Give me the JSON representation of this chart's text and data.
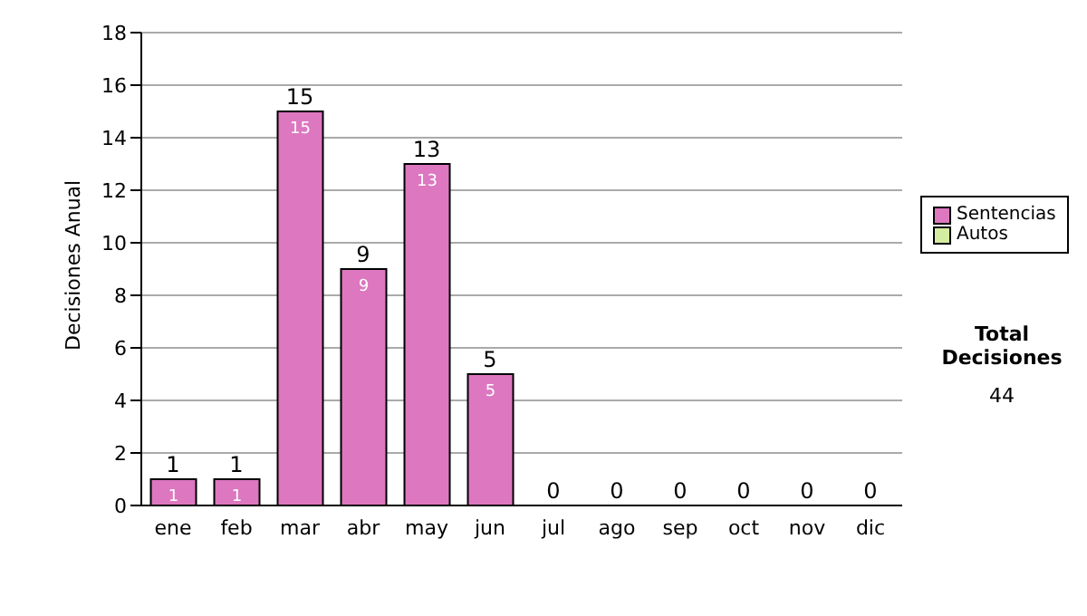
{
  "chart_data": {
    "type": "bar",
    "stacked": true,
    "ylabel": "Decisiones Anual",
    "categories": [
      "ene",
      "feb",
      "mar",
      "abr",
      "may",
      "jun",
      "jul",
      "ago",
      "sep",
      "oct",
      "nov",
      "dic"
    ],
    "series": [
      {
        "name": "Sentencias",
        "color": "#dd77c0",
        "values": [
          1,
          1,
          15,
          9,
          13,
          5,
          0,
          0,
          0,
          0,
          0,
          0
        ],
        "value_labels": [
          "1",
          "1",
          "15",
          "9",
          "13",
          "5",
          null,
          null,
          null,
          null,
          null,
          null
        ]
      },
      {
        "name": "Autos",
        "color": "#d4eca0",
        "values": [
          0,
          0,
          0,
          0,
          0,
          0,
          0,
          0,
          0,
          0,
          0,
          0
        ]
      }
    ],
    "totals": [
      "1",
      "1",
      "15",
      "9",
      "13",
      "5",
      "0",
      "0",
      "0",
      "0",
      "0",
      "0"
    ],
    "ylim": [
      0,
      18
    ],
    "yticks": [
      0,
      2,
      4,
      6,
      8,
      10,
      12,
      14,
      16,
      18
    ],
    "grid": "y",
    "legend": "right",
    "annotations": [
      "Total Decisiones",
      "44"
    ]
  }
}
